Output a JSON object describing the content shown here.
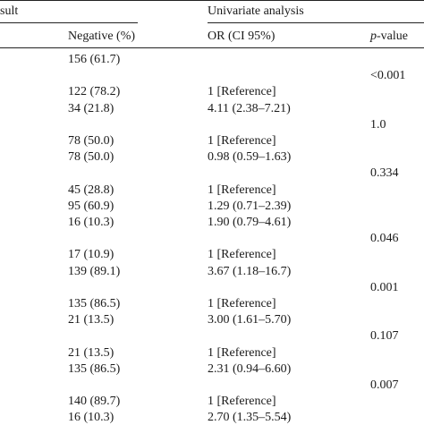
{
  "header": {
    "group_cut": "sult",
    "univariate": "Univariate analysis",
    "col_negative": "Negative (%)",
    "col_or": "OR (CI 95%)",
    "col_p_italic": "p",
    "col_p_rest": "-value"
  },
  "rows": [
    {
      "neg": "156 (61.7)",
      "or": "",
      "p": ""
    },
    {
      "neg": "",
      "or": "",
      "p": "<0.001"
    },
    {
      "neg": "122 (78.2)",
      "or": "1 [Reference]",
      "p": ""
    },
    {
      "neg": "34 (21.8)",
      "or": "4.11 (2.38–7.21)",
      "p": ""
    },
    {
      "neg": "",
      "or": "",
      "p": "1.0"
    },
    {
      "neg": "78 (50.0)",
      "or": "1 [Reference]",
      "p": ""
    },
    {
      "neg": "78 (50.0)",
      "or": "0.98 (0.59–1.63)",
      "p": ""
    },
    {
      "neg": "",
      "or": "",
      "p": "0.334"
    },
    {
      "neg": "45 (28.8)",
      "or": "1 [Reference]",
      "p": ""
    },
    {
      "neg": "95 (60.9)",
      "or": "1.29 (0.71–2.39)",
      "p": ""
    },
    {
      "neg": "16 (10.3)",
      "or": "1.90 (0.79–4.61)",
      "p": ""
    },
    {
      "neg": "",
      "or": "",
      "p": "0.046"
    },
    {
      "neg": "17 (10.9)",
      "or": "1 [Reference]",
      "p": ""
    },
    {
      "neg": "139 (89.1)",
      "or": "3.67 (1.18–16.7)",
      "p": ""
    },
    {
      "neg": "",
      "or": "",
      "p": "0.001"
    },
    {
      "neg": "135 (86.5)",
      "or": "1 [Reference]",
      "p": ""
    },
    {
      "neg": "21 (13.5)",
      "or": "3.00 (1.61–5.70)",
      "p": ""
    },
    {
      "neg": "",
      "or": "",
      "p": "0.107"
    },
    {
      "neg": "21 (13.5)",
      "or": "1 [Reference]",
      "p": ""
    },
    {
      "neg": "135 (86.5)",
      "or": "2.31 (0.94–6.60)",
      "p": ""
    },
    {
      "neg": "",
      "or": "",
      "p": "0.007"
    },
    {
      "neg": "140 (89.7)",
      "or": "1 [Reference]",
      "p": ""
    },
    {
      "neg": "16 (10.3)",
      "or": "2.70 (1.35–5.54)",
      "p": ""
    }
  ]
}
